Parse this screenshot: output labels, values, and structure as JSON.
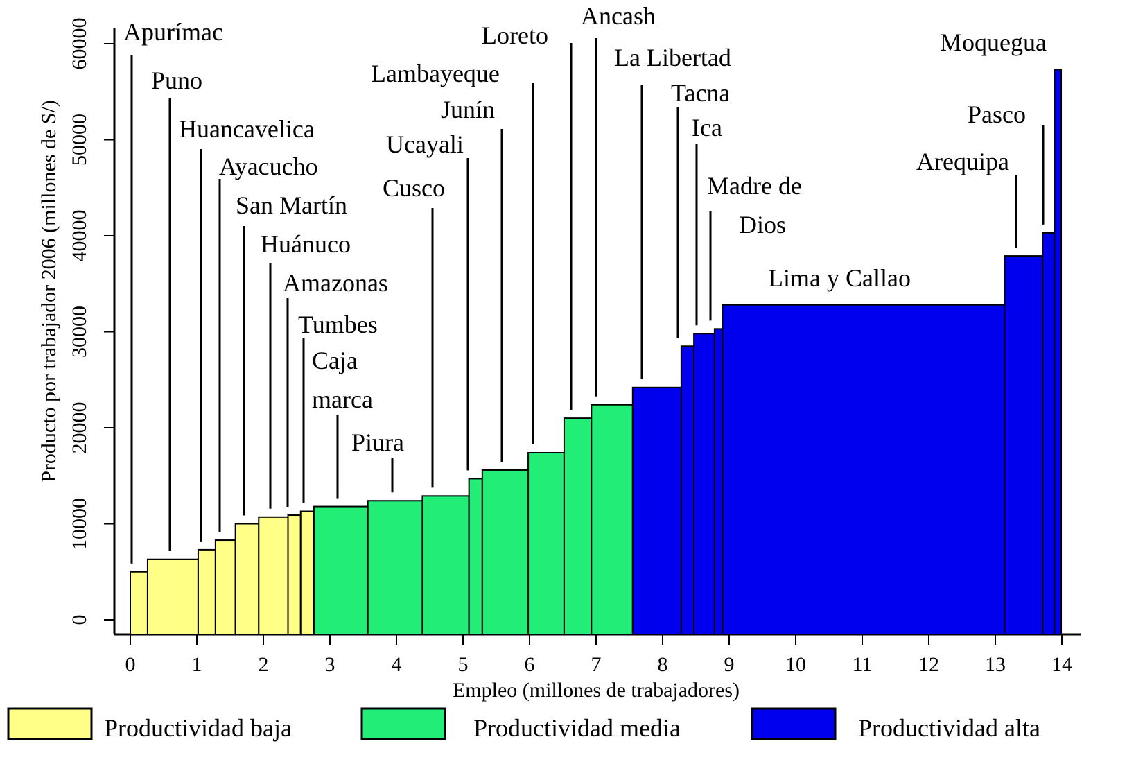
{
  "chart_data": {
    "type": "variable-width-bar",
    "xlabel": "Empleo (millones de trabajadores)",
    "ylabel": "Producto por trabajador 2006 (millones de S/)",
    "categories": [
      "Apurímac",
      "Puno",
      "Huancavelica",
      "Ayacucho",
      "San Martín",
      "Huánuco",
      "Amazonas",
      "Tumbes",
      [
        "Caja",
        "marca"
      ],
      "Piura",
      "Cusco",
      "Ucayali",
      "Junín",
      "Lambayeque",
      "Loreto",
      "Ancash",
      "La Libertad",
      "Tacna",
      "Ica",
      [
        "Madre de",
        "Dios"
      ],
      "Lima y Callao",
      "Arequipa",
      "Pasco",
      "Moquegua"
    ],
    "widths": [
      0.26,
      0.76,
      0.26,
      0.3,
      0.35,
      0.44,
      0.19,
      0.2,
      0.81,
      0.82,
      0.7,
      0.2,
      0.69,
      0.54,
      0.41,
      0.62,
      0.73,
      0.19,
      0.31,
      0.12,
      4.24,
      0.57,
      0.18,
      0.1
    ],
    "values": [
      5000,
      6300,
      7300,
      8300,
      10000,
      10700,
      10900,
      11300,
      11800,
      12400,
      12900,
      14700,
      15600,
      17400,
      21000,
      22400,
      24200,
      28500,
      29800,
      30300,
      32800,
      37900,
      40300,
      57300
    ],
    "group": [
      0,
      0,
      0,
      0,
      0,
      0,
      0,
      0,
      1,
      1,
      1,
      1,
      1,
      1,
      1,
      1,
      2,
      2,
      2,
      2,
      2,
      2,
      2,
      2
    ],
    "groups": [
      {
        "name": "Productividad baja",
        "color": "#ffff88"
      },
      {
        "name": "Productividad media",
        "color": "#22ee77"
      },
      {
        "name": "Productividad alta",
        "color": "#0000ee"
      }
    ],
    "xlim": [
      0,
      14
    ],
    "xticks": [
      0,
      1,
      2,
      3,
      4,
      5,
      6,
      7,
      8,
      9,
      10,
      11,
      12,
      13,
      14
    ],
    "ylim": [
      0,
      60000
    ],
    "yticks": [
      0,
      10000,
      20000,
      30000,
      40000,
      50000,
      60000
    ]
  }
}
